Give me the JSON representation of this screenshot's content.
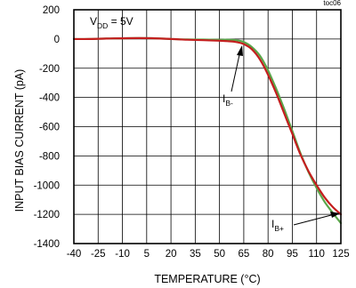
{
  "chart_data": {
    "type": "line",
    "title": "",
    "xlabel": "TEMPERATURE (°C)",
    "ylabel": "INPUT BIAS CURRENT (pA)",
    "xlim": [
      -40,
      125
    ],
    "ylim": [
      -1400,
      200
    ],
    "xticks": [
      -40,
      -25,
      -10,
      5,
      20,
      35,
      50,
      65,
      80,
      95,
      110,
      125
    ],
    "yticks": [
      200,
      0,
      -200,
      -400,
      -600,
      -800,
      -1000,
      -1200,
      -1400
    ],
    "xtick_labels": [
      "-40",
      "-25",
      "-10",
      "5",
      "20",
      "35",
      "50",
      "65",
      "80",
      "95",
      "110",
      "125"
    ],
    "ytick_labels": [
      "200",
      "0",
      "-200",
      "-400",
      "-600",
      "-800",
      "-1000",
      "-1200",
      "-1400"
    ],
    "grid": true,
    "corner_label": "toc06",
    "annotations": {
      "condition": {
        "main": "V",
        "sub": "DD",
        "rest": " = 5V"
      },
      "ib_minus": {
        "main": "I",
        "sub": "B-"
      },
      "ib_plus": {
        "main": "I",
        "sub": "B+"
      }
    },
    "series": [
      {
        "name": "IB-",
        "color": "#c41e1e",
        "x": [
          -40,
          -30,
          -20,
          -10,
          0,
          10,
          20,
          30,
          40,
          50,
          55,
          60,
          65,
          70,
          75,
          80,
          85,
          90,
          95,
          100,
          105,
          110,
          115,
          120,
          125
        ],
        "y": [
          0,
          0,
          3,
          5,
          6,
          5,
          0,
          -5,
          -8,
          -12,
          -15,
          -20,
          -35,
          -70,
          -140,
          -245,
          -370,
          -510,
          -650,
          -790,
          -905,
          -1000,
          -1085,
          -1150,
          -1200
        ]
      },
      {
        "name": "IB+",
        "color": "#5aa64a",
        "x": [
          -40,
          -30,
          -20,
          -10,
          0,
          10,
          20,
          30,
          40,
          50,
          55,
          60,
          65,
          70,
          75,
          80,
          85,
          90,
          95,
          100,
          105,
          110,
          115,
          120,
          125
        ],
        "y": [
          0,
          0,
          3,
          5,
          6,
          5,
          0,
          -3,
          -4,
          -5,
          -5,
          -8,
          -20,
          -55,
          -115,
          -215,
          -340,
          -480,
          -630,
          -780,
          -910,
          -1020,
          -1115,
          -1190,
          -1260
        ]
      }
    ]
  }
}
